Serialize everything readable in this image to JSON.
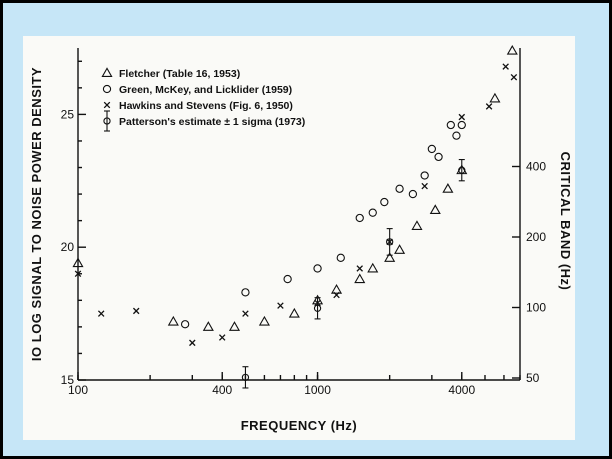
{
  "chart_data": {
    "type": "scatter",
    "xlabel": "FREQUENCY (Hz)",
    "ylabel": "IO LOG SIGNAL TO NOISE POWER DENSITY",
    "y2label": "CRITICAL BAND (Hz)",
    "x_scale": "log",
    "y2_scale": "log",
    "xlim": [
      100,
      7000
    ],
    "ylim": [
      15,
      27.5
    ],
    "x_ticks": [
      {
        "value": 100,
        "label": "100"
      },
      {
        "value": 400,
        "label": "400"
      },
      {
        "value": 1000,
        "label": "1000"
      },
      {
        "value": 4000,
        "label": "4000"
      }
    ],
    "y_ticks": [
      {
        "value": 15,
        "label": "15"
      },
      {
        "value": 20,
        "label": "20"
      },
      {
        "value": 25,
        "label": "25"
      }
    ],
    "y2_ticks": [
      {
        "value": 50,
        "label": "50"
      },
      {
        "value": 100,
        "label": "100"
      },
      {
        "value": 200,
        "label": "200"
      },
      {
        "value": 400,
        "label": "400"
      }
    ],
    "grid": false,
    "legend_position": "top-left",
    "series": [
      {
        "name": "Fletcher (Table 16, 1953)",
        "marker": "triangle",
        "points": [
          [
            100,
            19.4
          ],
          [
            250,
            17.2
          ],
          [
            350,
            17.0
          ],
          [
            450,
            17.0
          ],
          [
            600,
            17.2
          ],
          [
            800,
            17.5
          ],
          [
            1000,
            18.0
          ],
          [
            1200,
            18.4
          ],
          [
            1500,
            18.8
          ],
          [
            1700,
            19.2
          ],
          [
            2000,
            19.6
          ],
          [
            2200,
            19.9
          ],
          [
            2600,
            20.8
          ],
          [
            3100,
            21.4
          ],
          [
            3500,
            22.2
          ],
          [
            4000,
            22.9
          ],
          [
            5500,
            25.6
          ],
          [
            6500,
            27.4
          ]
        ]
      },
      {
        "name": "Green, McKey, and Licklider (1959)",
        "marker": "circle",
        "points": [
          [
            280,
            17.1
          ],
          [
            500,
            18.3
          ],
          [
            750,
            18.8
          ],
          [
            1000,
            19.2
          ],
          [
            1250,
            19.6
          ],
          [
            1500,
            21.1
          ],
          [
            1700,
            21.3
          ],
          [
            1900,
            21.7
          ],
          [
            2200,
            22.2
          ],
          [
            2500,
            22.0
          ],
          [
            2800,
            22.7
          ],
          [
            3000,
            23.7
          ],
          [
            3200,
            23.4
          ],
          [
            3600,
            24.6
          ],
          [
            3800,
            24.2
          ],
          [
            4000,
            24.6
          ]
        ]
      },
      {
        "name": "Hawkins and Stevens (Fig. 6, 1950)",
        "marker": "x",
        "points": [
          [
            100,
            19.0
          ],
          [
            125,
            17.5
          ],
          [
            175,
            17.6
          ],
          [
            300,
            16.4
          ],
          [
            400,
            16.6
          ],
          [
            500,
            17.5
          ],
          [
            700,
            17.8
          ],
          [
            1000,
            17.9
          ],
          [
            1200,
            18.2
          ],
          [
            1500,
            19.2
          ],
          [
            2000,
            20.2
          ],
          [
            2800,
            22.3
          ],
          [
            4000,
            24.9
          ],
          [
            5200,
            25.3
          ],
          [
            6100,
            26.8
          ],
          [
            6600,
            26.4
          ]
        ]
      },
      {
        "name": "Patterson's estimate ± 1 sigma (1973)",
        "marker": "errorbar",
        "points": [
          [
            500,
            15.1,
            0.4
          ],
          [
            1000,
            17.7,
            0.4
          ],
          [
            2000,
            20.2,
            0.5
          ],
          [
            4000,
            22.9,
            0.4
          ]
        ]
      }
    ]
  }
}
